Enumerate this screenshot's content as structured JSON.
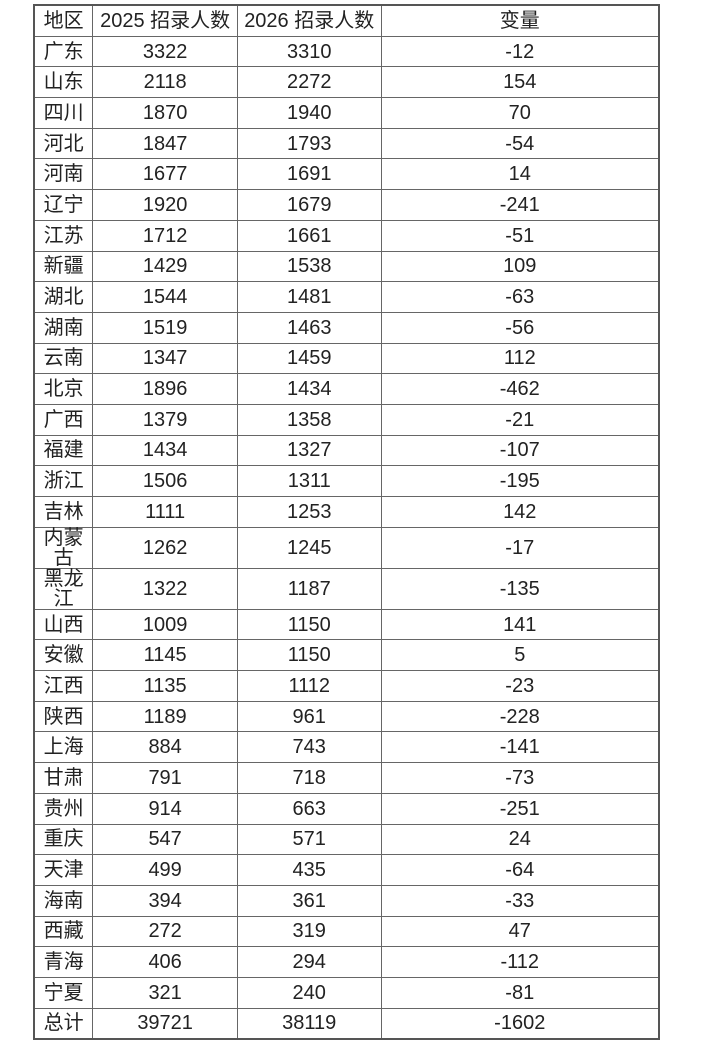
{
  "table": {
    "headers": [
      "地区",
      "2025 招录人数",
      "2026 招录人数",
      "变量"
    ],
    "rows": [
      [
        "广东",
        "3322",
        "3310",
        "-12"
      ],
      [
        "山东",
        "2118",
        "2272",
        "154"
      ],
      [
        "四川",
        "1870",
        "1940",
        "70"
      ],
      [
        "河北",
        "1847",
        "1793",
        "-54"
      ],
      [
        "河南",
        "1677",
        "1691",
        "14"
      ],
      [
        "辽宁",
        "1920",
        "1679",
        "-241"
      ],
      [
        "江苏",
        "1712",
        "1661",
        "-51"
      ],
      [
        "新疆",
        "1429",
        "1538",
        "109"
      ],
      [
        "湖北",
        "1544",
        "1481",
        "-63"
      ],
      [
        "湖南",
        "1519",
        "1463",
        "-56"
      ],
      [
        "云南",
        "1347",
        "1459",
        "112"
      ],
      [
        "北京",
        "1896",
        "1434",
        "-462"
      ],
      [
        "广西",
        "1379",
        "1358",
        "-21"
      ],
      [
        "福建",
        "1434",
        "1327",
        "-107"
      ],
      [
        "浙江",
        "1506",
        "1311",
        "-195"
      ],
      [
        "吉林",
        "1111",
        "1253",
        "142"
      ],
      [
        "内蒙古",
        "1262",
        "1245",
        "-17"
      ],
      [
        "黑龙江",
        "1322",
        "1187",
        "-135"
      ],
      [
        "山西",
        "1009",
        "1150",
        "141"
      ],
      [
        "安徽",
        "1145",
        "1150",
        "5"
      ],
      [
        "江西",
        "1135",
        "1112",
        "-23"
      ],
      [
        "陕西",
        "1189",
        "961",
        "-228"
      ],
      [
        "上海",
        "884",
        "743",
        "-141"
      ],
      [
        "甘肃",
        "791",
        "718",
        "-73"
      ],
      [
        "贵州",
        "914",
        "663",
        "-251"
      ],
      [
        "重庆",
        "547",
        "571",
        "24"
      ],
      [
        "天津",
        "499",
        "435",
        "-64"
      ],
      [
        "海南",
        "394",
        "361",
        "-33"
      ],
      [
        "西藏",
        "272",
        "319",
        "47"
      ],
      [
        "青海",
        "406",
        "294",
        "-112"
      ],
      [
        "宁夏",
        "321",
        "240",
        "-81"
      ]
    ],
    "total": [
      "总计",
      "39721",
      "38119",
      "-1602"
    ]
  }
}
